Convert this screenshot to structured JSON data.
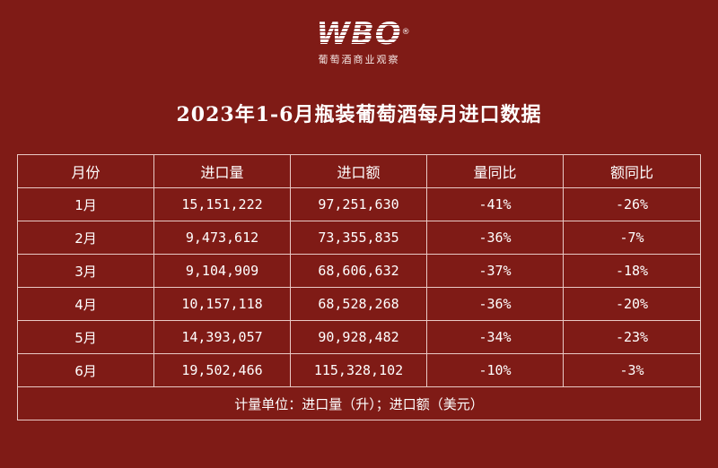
{
  "logo": {
    "mark": "WBO",
    "registered": "®",
    "subtitle": "葡萄酒商业观察"
  },
  "title": "2023年1-6月瓶装葡萄酒每月进口数据",
  "table": {
    "headers": [
      "月份",
      "进口量",
      "进口额",
      "量同比",
      "额同比"
    ],
    "rows": [
      [
        "1月",
        "15,151,222",
        "97,251,630",
        "-41%",
        "-26%"
      ],
      [
        "2月",
        "9,473,612",
        "73,355,835",
        "-36%",
        "-7%"
      ],
      [
        "3月",
        "9,104,909",
        "68,606,632",
        "-37%",
        "-18%"
      ],
      [
        "4月",
        "10,157,118",
        "68,528,268",
        "-36%",
        "-20%"
      ],
      [
        "5月",
        "14,393,057",
        "90,928,482",
        "-34%",
        "-23%"
      ],
      [
        "6月",
        "19,502,466",
        "115,328,102",
        "-10%",
        "-3%"
      ]
    ],
    "footnote": "计量单位：进口量（升）；进口额（美元）"
  }
}
